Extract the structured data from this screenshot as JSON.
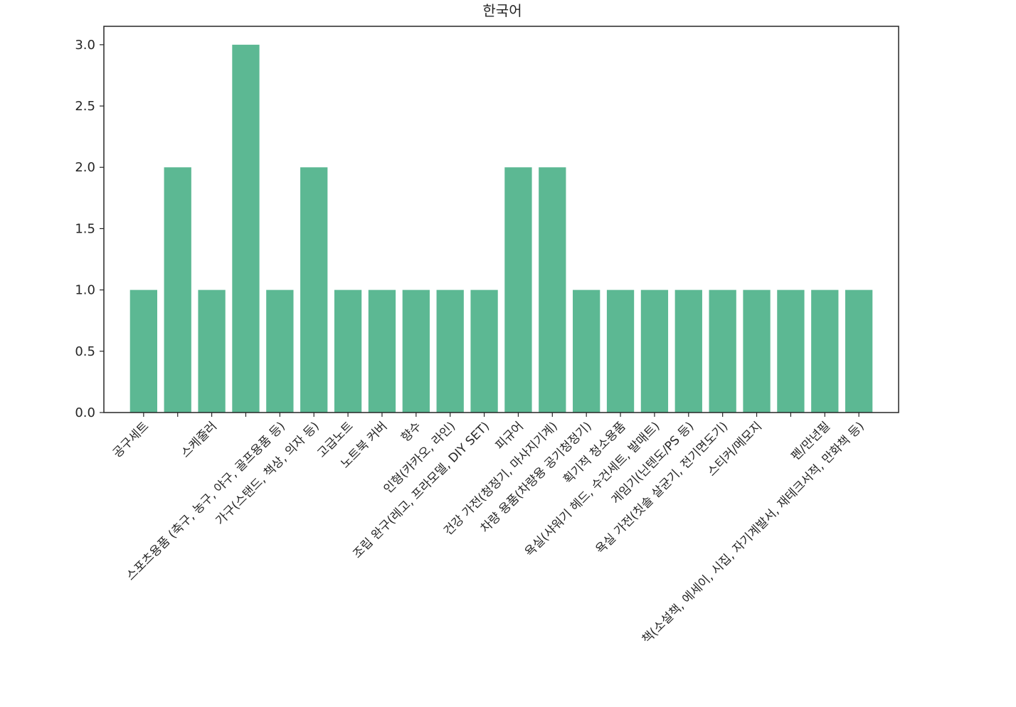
{
  "chart_data": {
    "type": "bar",
    "title": "한국어",
    "xlabel": "",
    "ylabel": "",
    "ylim": [
      0,
      3.15
    ],
    "yticks": [
      0.0,
      0.5,
      1.0,
      1.5,
      2.0,
      2.5,
      3.0
    ],
    "ytick_labels": [
      "0.0",
      "0.5",
      "1.0",
      "1.5",
      "2.0",
      "2.5",
      "3.0"
    ],
    "bar_color": "#5cb893",
    "categories": [
      "공구세트",
      "",
      "스케줄러",
      "",
      "스포츠용품 (축구, 농구, 야구, 골프용품 등)",
      "가구(스탠드, 책상, 의자 등)",
      "고급노트",
      "노트북 커버",
      "향수",
      "인형(카카오, 라인)",
      "조립 완구(레고, 프라모델, DIY SET)",
      "피규어",
      "건강 가전(청정기, 마사지기계)",
      "차량 용품(차량용 공기청정기)",
      "획기적 청소용품",
      "욕실(샤워기 헤드, 수건세트, 발매트)",
      "게임기(닌텐도/PS 등)",
      "욕실 가전(칫솔 살균기, 전기면도기)",
      "스티커/메모지",
      "",
      "펜/만년필",
      "책(소설책, 에세이, 시집, 자기계발서, 재테크서적, 만화책 등)"
    ],
    "values": [
      1,
      2,
      1,
      3,
      1,
      2,
      1,
      1,
      1,
      1,
      1,
      2,
      2,
      1,
      1,
      1,
      1,
      1,
      1,
      1,
      1,
      1
    ]
  }
}
